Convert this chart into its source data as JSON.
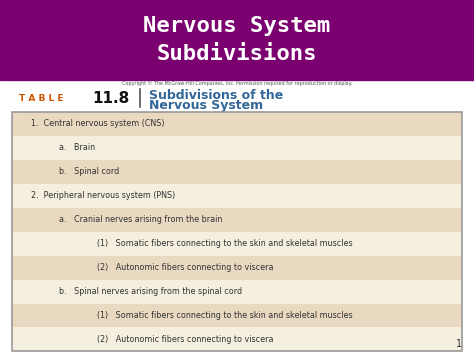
{
  "title_line1": "Nervous System",
  "title_line2": "Subdivisions",
  "title_bg_color": "#7B0070",
  "title_text_color": "#FFFFFF",
  "copyright_text": "Copyright © The McGraw-Hill Companies, Inc. Permission required for reproduction or display.",
  "table_label": "T A B L E",
  "table_number": "11.8",
  "table_title_line1": "Subdivisions of the",
  "table_title_line2": "Nervous System",
  "table_label_color": "#CC5500",
  "table_title_color": "#336699",
  "rows": [
    {
      "text": "1.  Central nervous system (CNS)",
      "indent": 0.04,
      "bg": "#E8D9C0"
    },
    {
      "text": "a.   Brain",
      "indent": 0.1,
      "bg": "#F5EFE0"
    },
    {
      "text": "b.   Spinal cord",
      "indent": 0.1,
      "bg": "#E8D9C0"
    },
    {
      "text": "2.  Peripheral nervous system (PNS)",
      "indent": 0.04,
      "bg": "#F5EFE0"
    },
    {
      "text": "a.   Cranial nerves arising from the brain",
      "indent": 0.1,
      "bg": "#E8D9C0"
    },
    {
      "text": "(1)   Somatic fibers connecting to the skin and skeletal muscles",
      "indent": 0.18,
      "bg": "#F5EFE0"
    },
    {
      "text": "(2)   Autonomic fibers connecting to viscera",
      "indent": 0.18,
      "bg": "#E8D9C0"
    },
    {
      "text": "b.   Spinal nerves arising from the spinal cord",
      "indent": 0.1,
      "bg": "#F5EFE0"
    },
    {
      "text": "(1)   Somatic fibers connecting to the skin and skeletal muscles",
      "indent": 0.18,
      "bg": "#E8D9C0"
    },
    {
      "text": "(2)   Autonomic fibers connecting to viscera",
      "indent": 0.18,
      "bg": "#F5EFE0"
    }
  ],
  "page_number": "1",
  "bg_color": "#FFFFFF",
  "table_text_color": "#333333",
  "border_color": "#999999"
}
